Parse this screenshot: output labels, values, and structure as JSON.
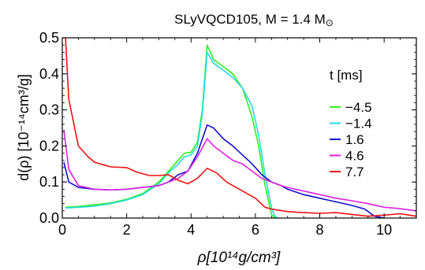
{
  "chart_data": {
    "type": "line",
    "title": "SLyVQCD105, M = 1.4 M",
    "title_sub": "⊙",
    "xlabel": "ρ[10¹⁴g/cm³]",
    "ylabel": "d(ρ) [10⁻¹⁴cm³/g]",
    "xlim": [
      0,
      11
    ],
    "ylim": [
      0,
      0.5
    ],
    "x_ticks": [
      0,
      2,
      4,
      6,
      8,
      10
    ],
    "x_tick_labels": [
      "0",
      "2",
      "4",
      "6",
      "8",
      "10"
    ],
    "y_ticks": [
      0.0,
      0.1,
      0.2,
      0.3,
      0.4,
      0.5
    ],
    "y_tick_labels": [
      "0.0",
      "0.1",
      "0.2",
      "0.3",
      "0.4",
      "0.5"
    ],
    "grid": false,
    "legend_title": "t [ms]",
    "legend_position": "right",
    "series": [
      {
        "name": "−4.5",
        "color": "#33ee22",
        "points": [
          [
            0.1,
            0.03
          ],
          [
            0.5,
            0.032
          ],
          [
            1.0,
            0.037
          ],
          [
            1.5,
            0.042
          ],
          [
            2.0,
            0.052
          ],
          [
            2.5,
            0.068
          ],
          [
            3.0,
            0.1
          ],
          [
            3.3,
            0.13
          ],
          [
            3.6,
            0.16
          ],
          [
            3.8,
            0.18
          ],
          [
            4.0,
            0.182
          ],
          [
            4.2,
            0.21
          ],
          [
            4.35,
            0.3
          ],
          [
            4.5,
            0.48
          ],
          [
            4.7,
            0.44
          ],
          [
            5.0,
            0.42
          ],
          [
            5.3,
            0.4
          ],
          [
            5.6,
            0.36
          ],
          [
            5.9,
            0.28
          ],
          [
            6.1,
            0.2
          ],
          [
            6.3,
            0.09
          ],
          [
            6.5,
            0.01
          ],
          [
            6.6,
            0.0
          ]
        ]
      },
      {
        "name": "−1.4",
        "color": "#22dddd",
        "points": [
          [
            0.1,
            0.028
          ],
          [
            0.5,
            0.03
          ],
          [
            1.0,
            0.033
          ],
          [
            1.5,
            0.04
          ],
          [
            2.0,
            0.05
          ],
          [
            2.5,
            0.065
          ],
          [
            3.0,
            0.095
          ],
          [
            3.3,
            0.125
          ],
          [
            3.6,
            0.15
          ],
          [
            3.8,
            0.17
          ],
          [
            4.0,
            0.175
          ],
          [
            4.2,
            0.2
          ],
          [
            4.35,
            0.29
          ],
          [
            4.5,
            0.46
          ],
          [
            4.7,
            0.43
          ],
          [
            5.0,
            0.41
          ],
          [
            5.3,
            0.39
          ],
          [
            5.6,
            0.36
          ],
          [
            5.9,
            0.31
          ],
          [
            6.1,
            0.23
          ],
          [
            6.3,
            0.12
          ],
          [
            6.5,
            0.03
          ],
          [
            6.6,
            0.005
          ],
          [
            6.7,
            0.0
          ]
        ]
      },
      {
        "name": "1.6",
        "color": "#1111cc",
        "points": [
          [
            0.05,
            0.155
          ],
          [
            0.2,
            0.1
          ],
          [
            0.5,
            0.085
          ],
          [
            1.0,
            0.08
          ],
          [
            1.5,
            0.078
          ],
          [
            2.0,
            0.08
          ],
          [
            2.5,
            0.085
          ],
          [
            3.0,
            0.09
          ],
          [
            3.3,
            0.1
          ],
          [
            3.6,
            0.12
          ],
          [
            3.9,
            0.13
          ],
          [
            4.2,
            0.18
          ],
          [
            4.5,
            0.258
          ],
          [
            4.7,
            0.25
          ],
          [
            5.0,
            0.22
          ],
          [
            5.3,
            0.2
          ],
          [
            5.6,
            0.175
          ],
          [
            5.9,
            0.15
          ],
          [
            6.2,
            0.12
          ],
          [
            6.5,
            0.1
          ],
          [
            6.8,
            0.09
          ],
          [
            7.0,
            0.08
          ],
          [
            7.5,
            0.065
          ],
          [
            8.0,
            0.055
          ],
          [
            8.5,
            0.045
          ],
          [
            9.0,
            0.035
          ],
          [
            9.4,
            0.025
          ],
          [
            9.7,
            0.005
          ],
          [
            10.0,
            0.0
          ]
        ]
      },
      {
        "name": "4.6",
        "color": "#dd22dd",
        "points": [
          [
            0.05,
            0.245
          ],
          [
            0.2,
            0.135
          ],
          [
            0.5,
            0.09
          ],
          [
            1.0,
            0.08
          ],
          [
            1.5,
            0.078
          ],
          [
            2.0,
            0.08
          ],
          [
            2.5,
            0.085
          ],
          [
            3.0,
            0.09
          ],
          [
            3.3,
            0.1
          ],
          [
            3.6,
            0.11
          ],
          [
            3.9,
            0.13
          ],
          [
            4.2,
            0.17
          ],
          [
            4.5,
            0.22
          ],
          [
            4.7,
            0.2
          ],
          [
            5.0,
            0.18
          ],
          [
            5.3,
            0.16
          ],
          [
            5.6,
            0.15
          ],
          [
            5.9,
            0.13
          ],
          [
            6.2,
            0.11
          ],
          [
            6.5,
            0.1
          ],
          [
            6.8,
            0.09
          ],
          [
            7.0,
            0.085
          ],
          [
            7.5,
            0.075
          ],
          [
            8.0,
            0.065
          ],
          [
            8.5,
            0.055
          ],
          [
            9.0,
            0.048
          ],
          [
            9.5,
            0.04
          ],
          [
            10.0,
            0.03
          ],
          [
            10.5,
            0.026
          ],
          [
            11.0,
            0.02
          ]
        ]
      },
      {
        "name": "7.7",
        "color": "#ee1111",
        "points": [
          [
            0.1,
            0.5
          ],
          [
            0.2,
            0.33
          ],
          [
            0.5,
            0.2
          ],
          [
            0.8,
            0.17
          ],
          [
            1.0,
            0.155
          ],
          [
            1.5,
            0.142
          ],
          [
            2.0,
            0.14
          ],
          [
            2.3,
            0.128
          ],
          [
            2.7,
            0.118
          ],
          [
            3.0,
            0.118
          ],
          [
            3.3,
            0.12
          ],
          [
            3.6,
            0.105
          ],
          [
            3.9,
            0.095
          ],
          [
            4.2,
            0.11
          ],
          [
            4.5,
            0.138
          ],
          [
            4.8,
            0.125
          ],
          [
            5.1,
            0.1
          ],
          [
            5.4,
            0.085
          ],
          [
            5.7,
            0.07
          ],
          [
            6.0,
            0.055
          ],
          [
            6.3,
            0.03
          ],
          [
            6.5,
            0.025
          ],
          [
            7.0,
            0.018
          ],
          [
            7.5,
            0.015
          ],
          [
            8.0,
            0.013
          ],
          [
            8.5,
            0.015
          ],
          [
            9.0,
            0.01
          ],
          [
            9.5,
            0.005
          ],
          [
            10.0,
            0.008
          ],
          [
            10.5,
            0.012
          ],
          [
            11.0,
            0.005
          ]
        ]
      }
    ]
  }
}
